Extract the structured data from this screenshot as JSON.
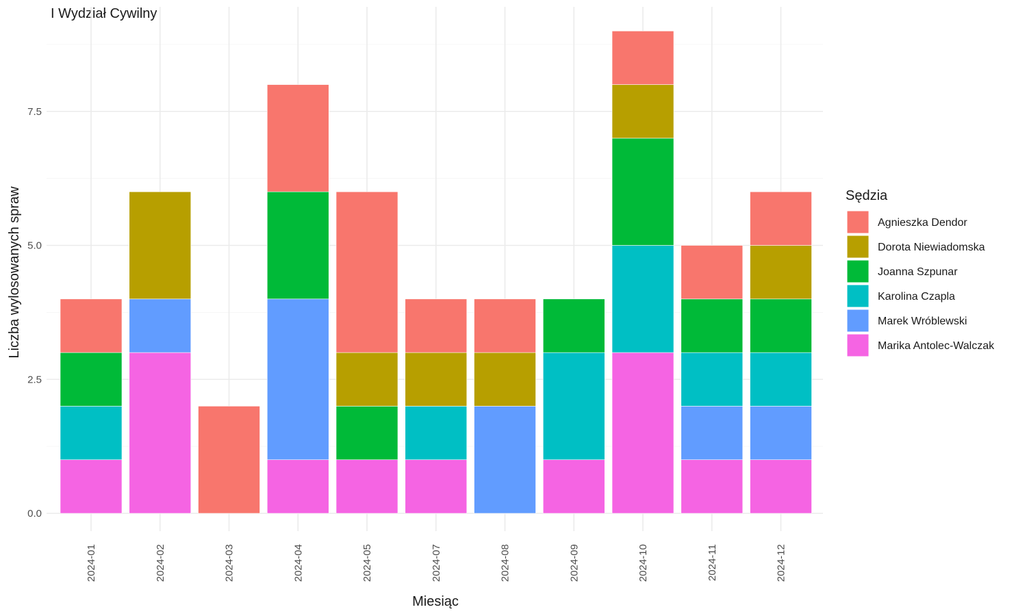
{
  "chart_data": {
    "type": "bar",
    "stacked": true,
    "title": "I Wydział Cywilny",
    "xlabel": "Miesiąc",
    "ylabel": "Liczba wylosowanych spraw",
    "ylim": [
      0,
      9
    ],
    "yticks": [
      0,
      2.5,
      5,
      7.5
    ],
    "ytick_labels": [
      "0.0",
      "2.5",
      "5.0",
      "7.5"
    ],
    "grid": true,
    "legend_position": "right",
    "legend_title": "Sędzia",
    "categories": [
      "2024-01",
      "2024-02",
      "2024-03",
      "2024-04",
      "2024-05",
      "2024-07",
      "2024-08",
      "2024-09",
      "2024-10",
      "2024-11",
      "2024-12"
    ],
    "series": [
      {
        "name": "Agnieszka Dendor",
        "color": "#F8766D",
        "values": [
          1,
          0,
          2,
          2,
          3,
          1,
          1,
          0,
          1,
          1,
          1
        ]
      },
      {
        "name": "Dorota Niewiadomska",
        "color": "#B79F00",
        "values": [
          0,
          2,
          0,
          0,
          1,
          1,
          1,
          0,
          1,
          0,
          1
        ]
      },
      {
        "name": "Joanna Szpunar",
        "color": "#00BA38",
        "values": [
          1,
          0,
          0,
          2,
          1,
          0,
          0,
          1,
          2,
          1,
          1
        ]
      },
      {
        "name": "Karolina Czapla",
        "color": "#00BFC4",
        "values": [
          1,
          0,
          0,
          0,
          0,
          1,
          0,
          2,
          2,
          1,
          1
        ]
      },
      {
        "name": "Marek Wróblewski",
        "color": "#619CFF",
        "values": [
          0,
          1,
          0,
          3,
          0,
          0,
          2,
          0,
          0,
          1,
          1
        ]
      },
      {
        "name": "Marika Antolec-Walczak",
        "color": "#F564E3",
        "values": [
          1,
          3,
          0,
          1,
          1,
          1,
          0,
          1,
          3,
          1,
          1
        ]
      }
    ]
  }
}
